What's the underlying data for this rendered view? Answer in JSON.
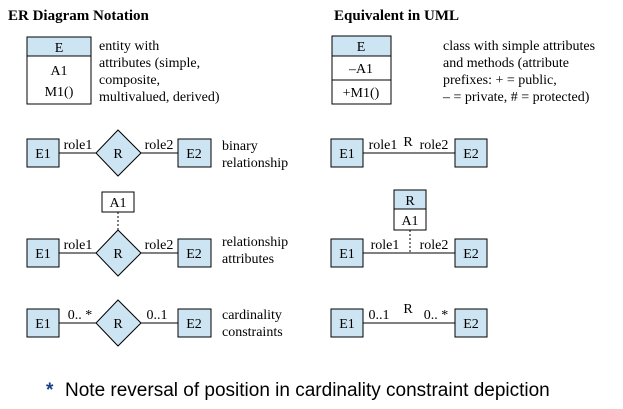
{
  "headers": {
    "left": "ER Diagram Notation",
    "right": "Equivalent in UML"
  },
  "colors": {
    "fill": "#cde4f2",
    "stroke": "#000000",
    "text": "#000000"
  },
  "er_entity": {
    "name": "E",
    "attr1": "A1",
    "attr2": "M1()",
    "desc": [
      "entity with",
      "attributes (simple,",
      "composite,",
      "multivalued, derived)"
    ]
  },
  "uml_class": {
    "name": "E",
    "attr1": "–A1",
    "attr2": "+M1()",
    "desc": [
      "class with simple attributes",
      "and methods (attribute",
      "prefixes: + = public,",
      "– = private, # = protected)"
    ]
  },
  "binary": {
    "e1": "E1",
    "e2": "E2",
    "rel": "R",
    "role1": "role1",
    "role2": "role2",
    "desc": [
      "binary",
      "relationship"
    ]
  },
  "attrs": {
    "attr": "A1",
    "e1": "E1",
    "e2": "E2",
    "rel": "R",
    "role1": "role1",
    "role2": "role2",
    "desc": [
      "relationship",
      "attributes"
    ],
    "uml_rel": "R",
    "uml_attr": "A1"
  },
  "cardinality": {
    "e1": "E1",
    "e2": "E2",
    "rel": "R",
    "er_left": "0.. *",
    "er_right": "0..1",
    "uml_left": "0..1",
    "uml_right": "0.. *",
    "desc": [
      "cardinality",
      "constraints"
    ]
  },
  "footnote": {
    "star": "*",
    "text": "Note reversal of position in cardinality constraint depiction"
  }
}
